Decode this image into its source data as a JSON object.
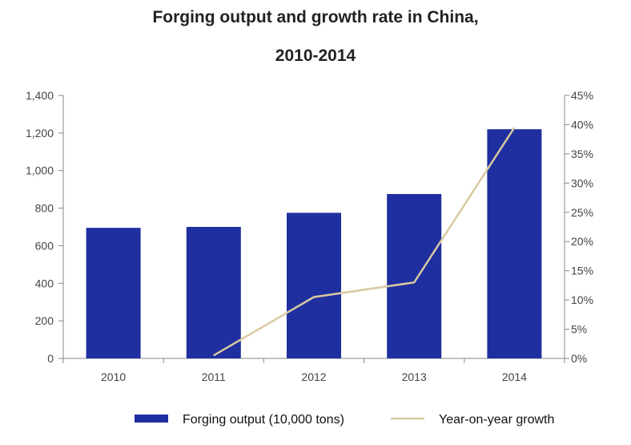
{
  "chart_data": {
    "type": "bar",
    "title_lines": [
      "Forging output and growth rate in China,",
      "2010-2014"
    ],
    "categories": [
      "2010",
      "2011",
      "2012",
      "2013",
      "2014"
    ],
    "series": [
      {
        "name": "Forging output (10,000 tons)",
        "kind": "bar",
        "axis": "left",
        "color": "#1f2fa0",
        "values": [
          695,
          700,
          775,
          875,
          1220
        ]
      },
      {
        "name": "Year-on-year growth",
        "kind": "line",
        "axis": "right",
        "color": "#d9c9a0",
        "values": [
          null,
          0.5,
          10.5,
          13,
          39.5
        ]
      }
    ],
    "y_left": {
      "range": [
        0,
        1400
      ],
      "ticks": [
        0,
        200,
        400,
        600,
        800,
        1000,
        1200,
        1400
      ],
      "tick_labels": [
        "0",
        "200",
        "400",
        "600",
        "800",
        "1,000",
        "1,200",
        "1,400"
      ]
    },
    "y_right": {
      "range": [
        0,
        45
      ],
      "ticks": [
        0,
        5,
        10,
        15,
        20,
        25,
        30,
        35,
        40,
        45
      ],
      "tick_labels": [
        "0%",
        "5%",
        "10%",
        "15%",
        "20%",
        "25%",
        "30%",
        "35%",
        "40%",
        "45%"
      ]
    },
    "grid": false,
    "legend_position": "bottom"
  }
}
